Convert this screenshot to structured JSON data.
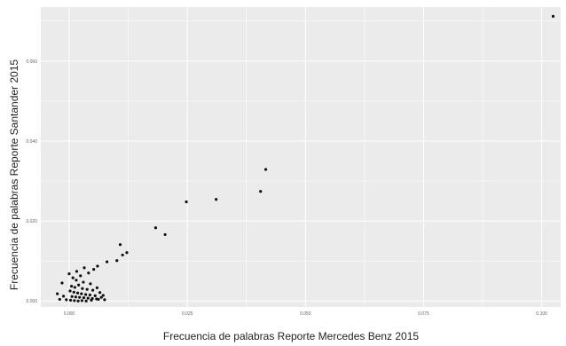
{
  "chart_data": {
    "type": "scatter",
    "xlabel": "Frecuencia de palabras Reporte Mercedes Benz 2015",
    "ylabel": "Frecuencia de palabras Reporte Santander 2015",
    "xticks": [
      {
        "value": 0.0,
        "label": "0.000"
      },
      {
        "value": 0.025,
        "label": "0.025"
      },
      {
        "value": 0.05,
        "label": "0.050"
      },
      {
        "value": 0.075,
        "label": "0.075"
      },
      {
        "value": 0.1,
        "label": "0.100"
      }
    ],
    "yticks": [
      {
        "value": 0.0,
        "label": "0.000"
      },
      {
        "value": 0.02,
        "label": "0.020"
      },
      {
        "value": 0.04,
        "label": "0.040"
      },
      {
        "value": 0.06,
        "label": "0.060"
      }
    ],
    "xlim": [
      -0.006,
      0.104
    ],
    "ylim": [
      -0.0015,
      0.0735
    ],
    "grid": true,
    "point_color": "#111111",
    "panel_background": "#ebebeb",
    "grid_color": "#ffffff",
    "points": [
      {
        "x": 0.1024,
        "y": 0.0712
      },
      {
        "x": 0.0416,
        "y": 0.0329
      },
      {
        "x": 0.0405,
        "y": 0.0274
      },
      {
        "x": 0.0311,
        "y": 0.0254
      },
      {
        "x": 0.0248,
        "y": 0.0248
      },
      {
        "x": 0.0183,
        "y": 0.0183
      },
      {
        "x": 0.0203,
        "y": 0.0166
      },
      {
        "x": 0.0108,
        "y": 0.0141
      },
      {
        "x": 0.0122,
        "y": 0.0121
      },
      {
        "x": 0.0113,
        "y": 0.0115
      },
      {
        "x": 0.0101,
        "y": 0.0101
      },
      {
        "x": 0.008,
        "y": 0.0098
      },
      {
        "x": 0.006,
        "y": 0.0087
      },
      {
        "x": 0.0052,
        "y": 0.0079
      },
      {
        "x": 0.0032,
        "y": 0.0083
      },
      {
        "x": 0.0041,
        "y": 0.007
      },
      {
        "x": 0.0024,
        "y": 0.0063
      },
      {
        "x": 0.0008,
        "y": 0.0058
      },
      {
        "x": 0.0015,
        "y": 0.0052
      },
      {
        "x": 0.003,
        "y": 0.0047
      },
      {
        "x": 0.0045,
        "y": 0.0043
      },
      {
        "x": 0.002,
        "y": 0.004
      },
      {
        "x": 0.0005,
        "y": 0.0037
      },
      {
        "x": 0.0012,
        "y": 0.0034
      },
      {
        "x": 0.0028,
        "y": 0.0031
      },
      {
        "x": 0.0038,
        "y": 0.0029
      },
      {
        "x": 0.005,
        "y": 0.0027
      },
      {
        "x": 0.0002,
        "y": 0.0025
      },
      {
        "x": 0.001,
        "y": 0.0022
      },
      {
        "x": 0.0018,
        "y": 0.002
      },
      {
        "x": 0.0026,
        "y": 0.0018
      },
      {
        "x": 0.0035,
        "y": 0.0016
      },
      {
        "x": 0.0044,
        "y": 0.0015
      },
      {
        "x": 0.0055,
        "y": 0.0013
      },
      {
        "x": -0.0012,
        "y": 0.0012
      },
      {
        "x": 0.0006,
        "y": 0.0011
      },
      {
        "x": 0.0014,
        "y": 0.001
      },
      {
        "x": 0.0022,
        "y": 0.0009
      },
      {
        "x": 0.0031,
        "y": 0.0008
      },
      {
        "x": 0.004,
        "y": 0.0007
      },
      {
        "x": 0.0049,
        "y": 0.0006
      },
      {
        "x": 0.0058,
        "y": 0.0005
      },
      {
        "x": -0.002,
        "y": 0.0004
      },
      {
        "x": -0.0006,
        "y": 0.0003
      },
      {
        "x": 0.0003,
        "y": 0.0002
      },
      {
        "x": 0.0011,
        "y": 0.0001
      },
      {
        "x": 0.0019,
        "y": 0.0
      },
      {
        "x": 0.0027,
        "y": 0.0001
      },
      {
        "x": 0.0036,
        "y": 0.0
      },
      {
        "x": 0.0047,
        "y": 0.0002
      },
      {
        "x": 0.0062,
        "y": 0.0004
      },
      {
        "x": 0.0068,
        "y": 0.0009
      },
      {
        "x": 0.0072,
        "y": 0.0014
      },
      {
        "x": 0.0065,
        "y": 0.0021
      },
      {
        "x": 0.0059,
        "y": 0.0033
      },
      {
        "x": -0.0015,
        "y": 0.0045
      },
      {
        "x": -0.0025,
        "y": 0.0018
      },
      {
        "x": 0.0,
        "y": 0.0068
      },
      {
        "x": 0.0016,
        "y": 0.0074
      },
      {
        "x": 0.0075,
        "y": 0.0003
      }
    ]
  }
}
